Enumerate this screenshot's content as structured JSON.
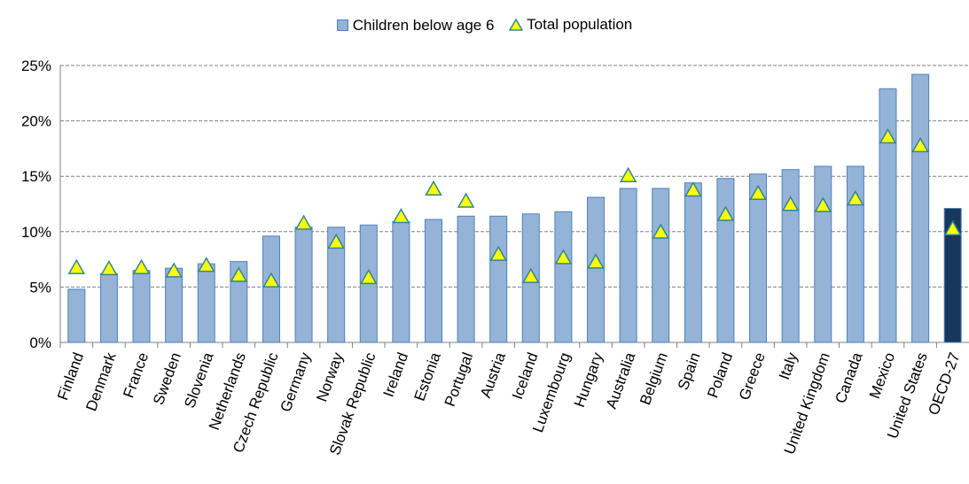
{
  "chart_data": {
    "type": "bar",
    "categories": [
      "Finland",
      "Denmark",
      "France",
      "Sweden",
      "Slovenia",
      "Netherlands",
      "Czech Republic",
      "Germany",
      "Norway",
      "Slovak Republic",
      "Ireland",
      "Estonia",
      "Portugal",
      "Austria",
      "Iceland",
      "Luxembourg",
      "Hungary",
      "Australia",
      "Belgium",
      "Spain",
      "Poland",
      "Greece",
      "Italy",
      "United Kingdom",
      "Canada",
      "Mexico",
      "United States",
      "OECD-27"
    ],
    "series": [
      {
        "name": "Children below age 6",
        "marker": "bar",
        "values": [
          4.8,
          6.2,
          6.5,
          6.7,
          7.1,
          7.3,
          9.6,
          10.4,
          10.4,
          10.6,
          10.9,
          11.1,
          11.4,
          11.4,
          11.6,
          11.8,
          13.1,
          13.9,
          13.9,
          14.4,
          14.8,
          15.2,
          15.6,
          15.9,
          15.9,
          22.9,
          24.2,
          12.1
        ]
      },
      {
        "name": "Total population",
        "marker": "triangle",
        "values": [
          6.7,
          6.6,
          6.7,
          6.4,
          6.9,
          6.0,
          5.5,
          10.7,
          9.0,
          5.8,
          11.3,
          13.8,
          12.7,
          7.9,
          5.9,
          7.6,
          7.2,
          15.0,
          9.9,
          13.7,
          11.5,
          13.4,
          12.4,
          12.3,
          12.9,
          18.5,
          17.7,
          10.2
        ]
      }
    ],
    "ylim": [
      0,
      25
    ],
    "yticks": [
      0,
      5,
      10,
      15,
      20,
      25
    ],
    "ytick_labels": [
      "0%",
      "5%",
      "10%",
      "15%",
      "20%",
      "25%"
    ],
    "grid": true,
    "legend_position": "top-center",
    "highlight_category": "OECD-27",
    "colors": {
      "bar": "#95B3D7",
      "bar_border": "#4F81BD",
      "highlight_bar": "#17375E",
      "triangle_fill": "#FFFF00",
      "triangle_border": "#31859C",
      "grid": "#808080"
    }
  }
}
